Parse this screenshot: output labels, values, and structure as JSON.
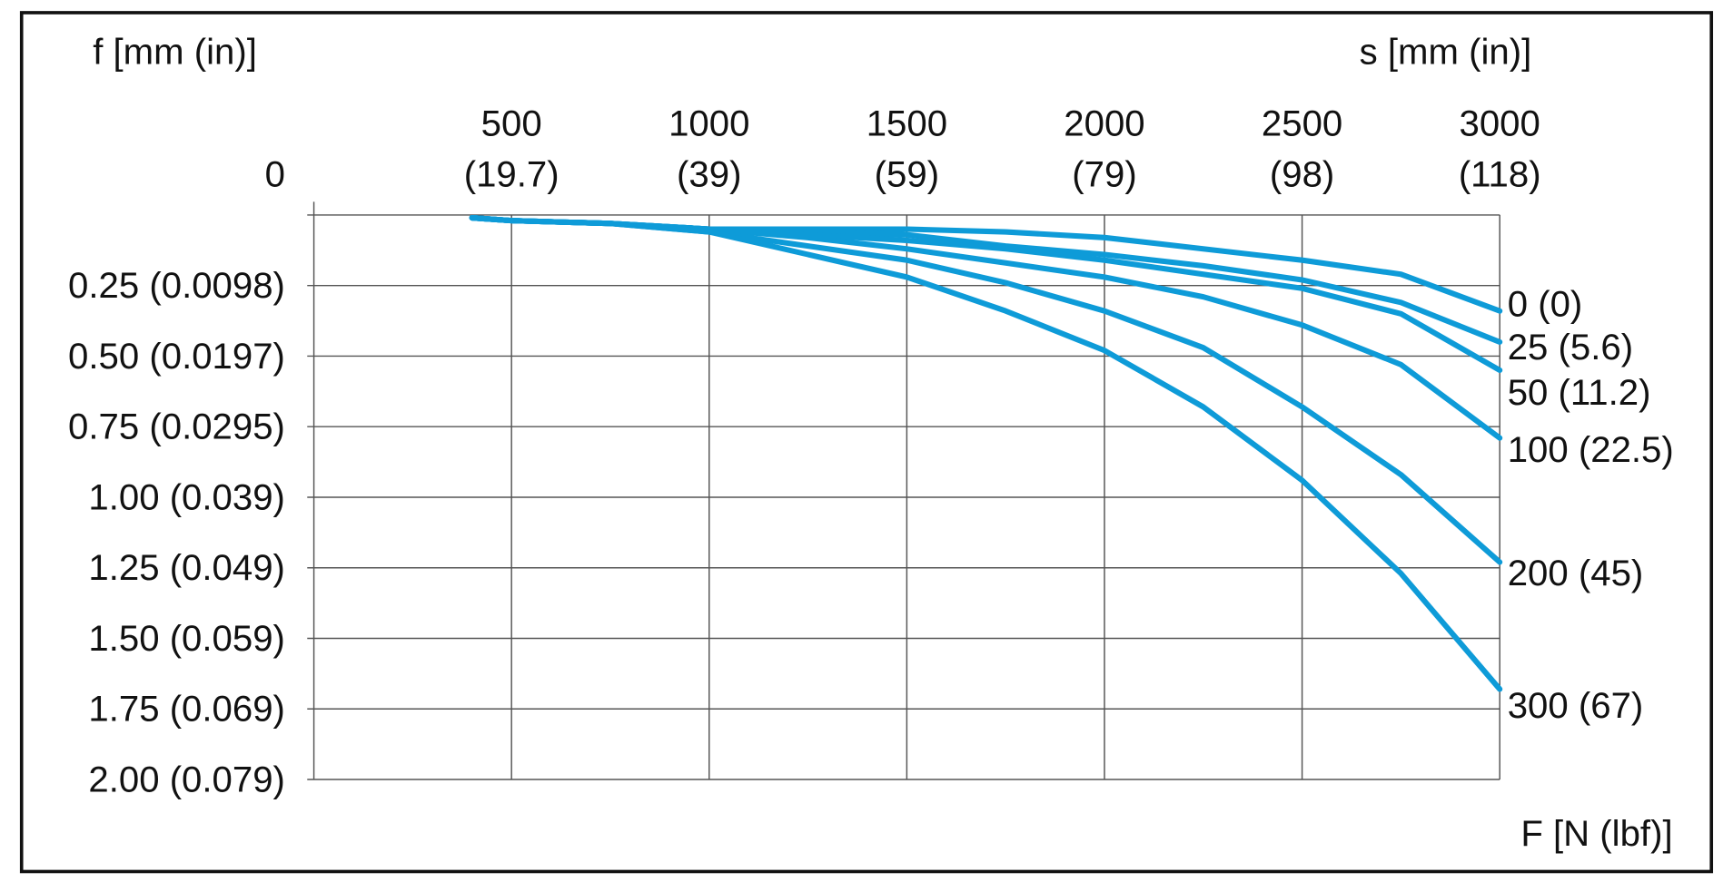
{
  "chart_data": {
    "type": "line",
    "y_axis_title": "f [mm (in)]",
    "x_axis_title": "s [mm (in)]",
    "legend_title": "F [N (lbf)]",
    "x": [
      400,
      500,
      750,
      1000,
      1250,
      1500,
      1750,
      2000,
      2250,
      2500,
      2750,
      3000
    ],
    "xlim": [
      0,
      3000
    ],
    "xticks": [
      {
        "value": 500,
        "label": "500\n(19.7)"
      },
      {
        "value": 1000,
        "label": "1000\n(39)"
      },
      {
        "value": 1500,
        "label": "1500\n(59)"
      },
      {
        "value": 2000,
        "label": "2000\n(79)"
      },
      {
        "value": 2500,
        "label": "2500\n(98)"
      },
      {
        "value": 3000,
        "label": "3000\n(118)"
      }
    ],
    "ylim": [
      0,
      2
    ],
    "yticks": [
      0,
      {
        "value": 0.25,
        "label": "0.25 (0.0098)"
      },
      {
        "value": 0.5,
        "label": "0.50 (0.0197)"
      },
      {
        "value": 0.75,
        "label": "0.75 (0.0295)"
      },
      {
        "value": 1,
        "label": "1.00 (0.039)"
      },
      {
        "value": 1.25,
        "label": "1.25 (0.049)"
      },
      {
        "value": 1.5,
        "label": "1.50 (0.059)"
      },
      {
        "value": 1.75,
        "label": "1.75 (0.069)"
      },
      {
        "value": 2,
        "label": "2.00 (0.079)"
      }
    ],
    "y_inverted": true,
    "grid": true,
    "series": [
      {
        "name": "0 (0)",
        "color": "#0e9bd8",
        "values": [
          0.01,
          0.02,
          0.03,
          0.05,
          0.05,
          0.05,
          0.06,
          0.08,
          0.12,
          0.16,
          0.21,
          0.34
        ]
      },
      {
        "name": "25 (5.6)",
        "color": "#0e9bd8",
        "values": [
          0.01,
          0.02,
          0.03,
          0.05,
          0.06,
          0.07,
          0.11,
          0.14,
          0.18,
          0.23,
          0.31,
          0.45
        ]
      },
      {
        "name": "50 (11.2)",
        "color": "#0e9bd8",
        "values": [
          0.01,
          0.02,
          0.03,
          0.05,
          0.07,
          0.09,
          0.12,
          0.16,
          0.21,
          0.26,
          0.35,
          0.55
        ]
      },
      {
        "name": "100 (22.5)",
        "color": "#0e9bd8",
        "values": [
          0.01,
          0.02,
          0.03,
          0.05,
          0.08,
          0.12,
          0.17,
          0.22,
          0.29,
          0.39,
          0.53,
          0.79
        ]
      },
      {
        "name": "200 (45)",
        "color": "#0e9bd8",
        "values": [
          0.01,
          0.02,
          0.03,
          0.06,
          0.11,
          0.16,
          0.24,
          0.34,
          0.47,
          0.68,
          0.92,
          1.23
        ]
      },
      {
        "name": "300 (67)",
        "color": "#0e9bd8",
        "values": [
          0.01,
          0.02,
          0.03,
          0.06,
          0.14,
          0.22,
          0.34,
          0.48,
          0.68,
          0.94,
          1.27,
          1.68
        ]
      }
    ]
  }
}
